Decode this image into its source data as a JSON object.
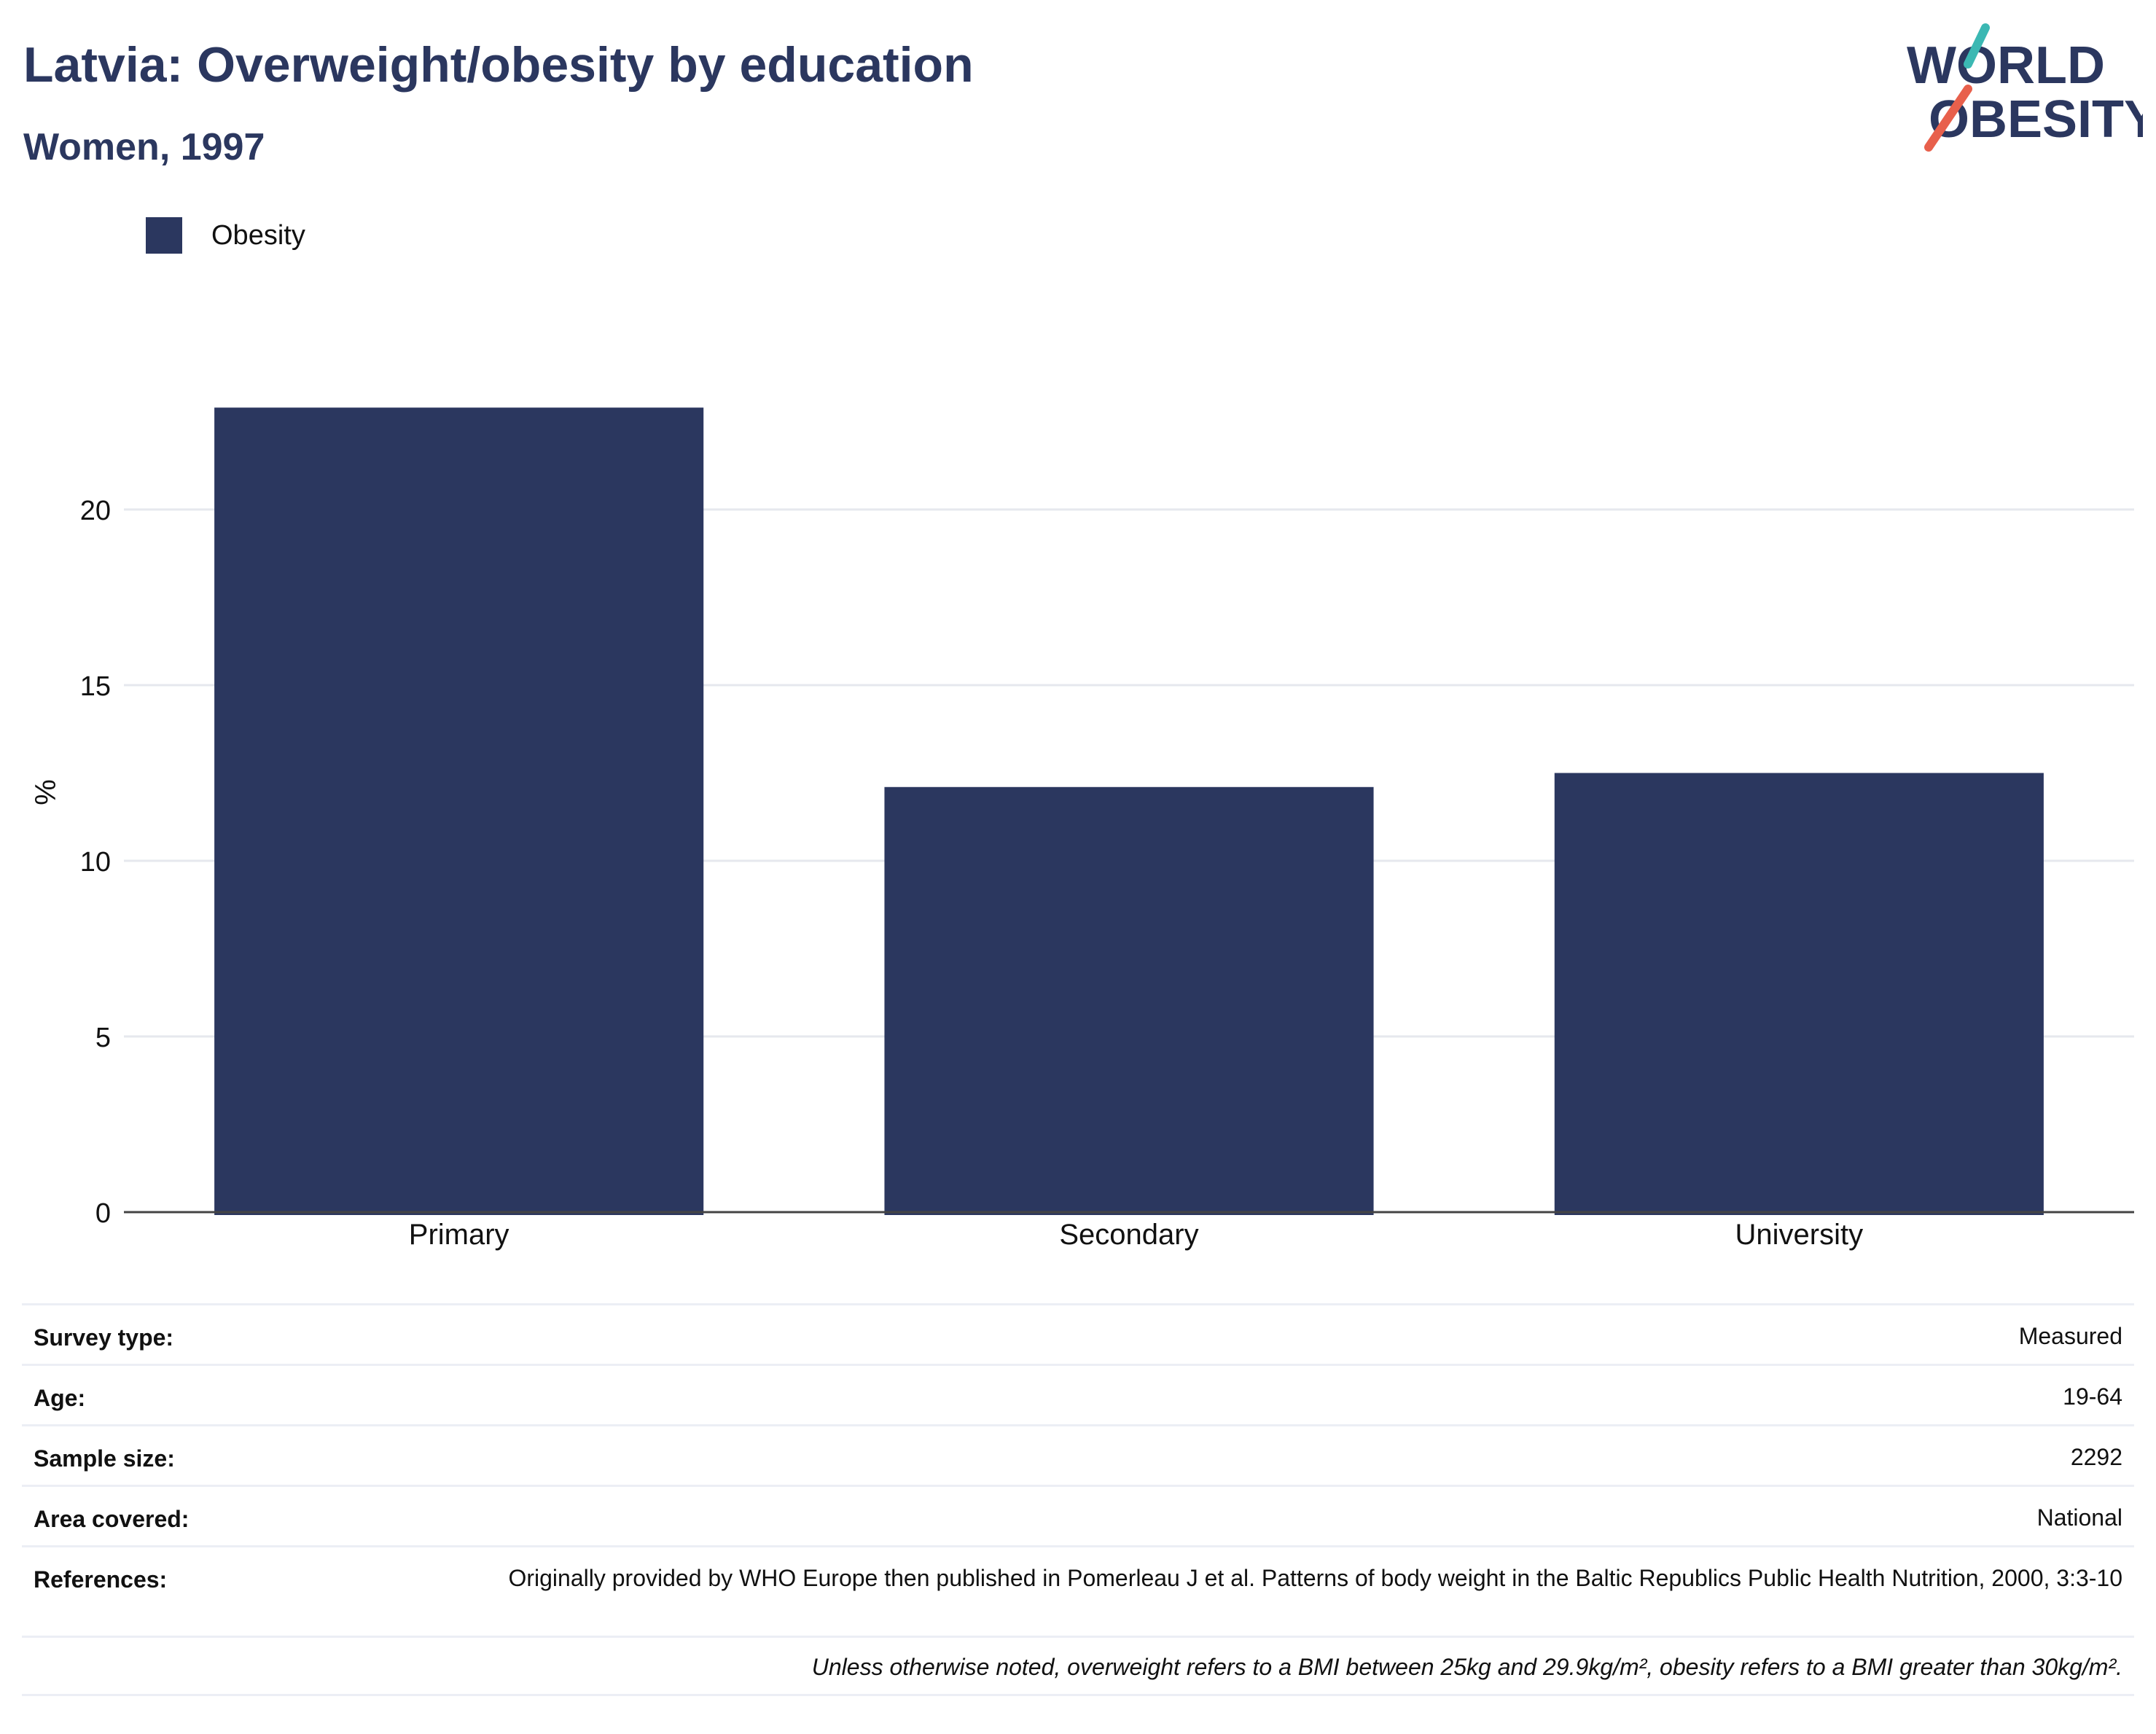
{
  "header": {
    "title": "Latvia: Overweight/obesity by education",
    "subtitle": "Women, 1997"
  },
  "logo": {
    "line1": "WORLD",
    "line2": "OBESITY",
    "colors": {
      "text": "#2b375f",
      "slash_top": "#3bb8b3",
      "slash_bottom": "#e8604c"
    }
  },
  "legend": {
    "label": "Obesity",
    "color": "#2b375f"
  },
  "chart_data": {
    "type": "bar",
    "categories": [
      "Primary",
      "Secondary",
      "University"
    ],
    "series": [
      {
        "name": "Obesity",
        "values": [
          22.9,
          12.1,
          12.5
        ],
        "color": "#2b375f"
      }
    ],
    "ylabel": "%",
    "xlabel": "",
    "ylim": [
      0,
      25
    ],
    "yticks": [
      0,
      5,
      10,
      15,
      20
    ],
    "grid": true
  },
  "meta": {
    "rows": [
      {
        "label": "Survey type:",
        "value": "Measured"
      },
      {
        "label": "Age:",
        "value": "19-64"
      },
      {
        "label": "Sample size:",
        "value": "2292"
      },
      {
        "label": "Area covered:",
        "value": "National"
      }
    ],
    "references_label": "References:",
    "references_value": "Originally provided by WHO Europe then published in Pomerleau J et al. Patterns of body weight in the Baltic Republics Public Health Nutrition, 2000, 3:3-10",
    "note": "Unless otherwise noted, overweight refers to a BMI between 25kg and 29.9kg/m², obesity refers to a BMI greater than 30kg/m²."
  }
}
